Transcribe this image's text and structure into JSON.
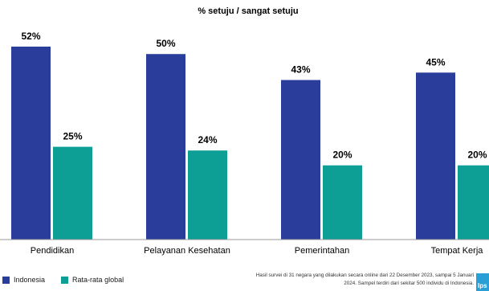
{
  "chart_data": {
    "type": "bar",
    "title": "% setuju / sangat setuju",
    "categories": [
      "Pendidikan",
      "Pelayanan Kesehatan",
      "Pemerintahan",
      "Tempat Kerja"
    ],
    "series": [
      {
        "name": "Indonesia",
        "color": "#2b3d9a",
        "values": [
          52,
          50,
          43,
          45
        ]
      },
      {
        "name": "Rata-rata global",
        "color": "#0d9e95",
        "values": [
          25,
          24,
          20,
          20
        ]
      }
    ],
    "value_labels": [
      [
        "52%",
        "50%",
        "43%",
        "45%"
      ],
      [
        "25%",
        "24%",
        "20%",
        "20%"
      ]
    ],
    "ylim": [
      0,
      52
    ],
    "grid": false,
    "legend_position": "bottom-left"
  },
  "footnote": "Hasil survei di 31 negara yang dilakukan secara online dari 22 Desember 2023, sampai 5 Januari 2024. Sampel terdiri dari sekitar 500 individu di Indonesia.",
  "brand": {
    "text": "Ips",
    "color": "#2a9fd6"
  }
}
